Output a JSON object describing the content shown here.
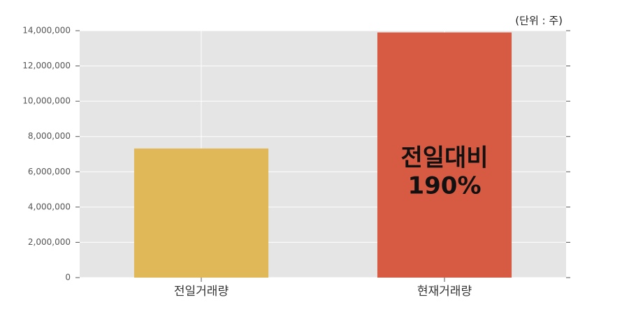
{
  "chart_data": {
    "type": "bar",
    "unit_label": "(단위 : 주)",
    "categories": [
      "전일거래량",
      "현재거래량"
    ],
    "values": [
      7320000,
      13900000
    ],
    "colors": [
      "#e0b858",
      "#d75b43"
    ],
    "annotation": [
      "전일대비",
      "190%"
    ],
    "ylim": [
      0,
      14000000
    ],
    "yticks": [
      0,
      {
        "value": 2000000,
        "label": "2,000,000"
      },
      {
        "value": 4000000,
        "label": "4,000,000"
      },
      {
        "value": 6000000,
        "label": "6,000,000"
      },
      {
        "value": 8000000,
        "label": "8,000,000"
      },
      {
        "value": 10000000,
        "label": "10,000,000"
      },
      {
        "value": 12000000,
        "label": "12,000,000"
      },
      {
        "value": 14000000,
        "label": "14,000,000"
      }
    ],
    "grid": true
  }
}
